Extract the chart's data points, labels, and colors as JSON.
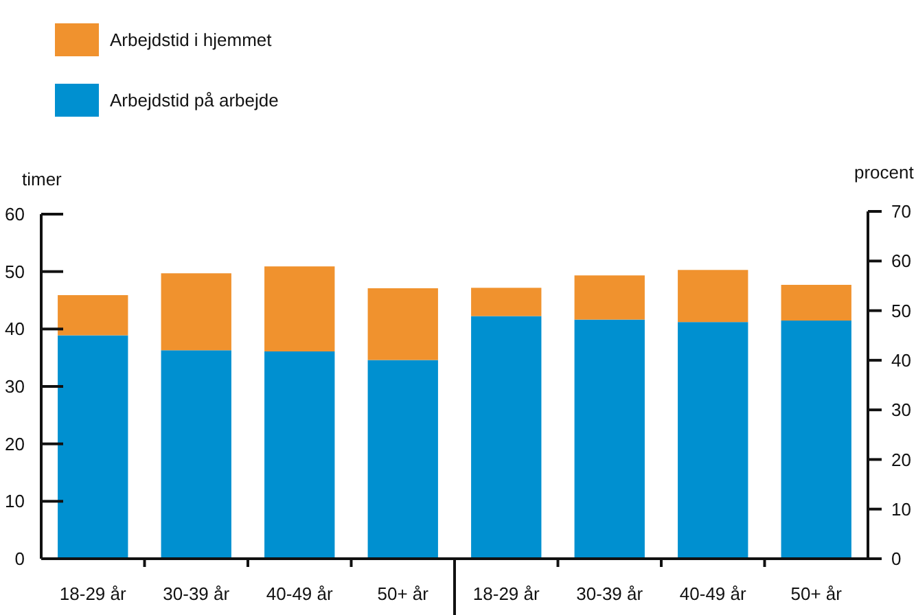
{
  "chart_data": {
    "type": "bar",
    "stacked": true,
    "ylabel": "timer",
    "y2label": "procent",
    "categories": [
      "18-29 år",
      "30-39 år",
      "40-49 år",
      "50+ år",
      "18-29 år",
      "30-39 år",
      "40-49 år",
      "50+ år"
    ],
    "series": [
      {
        "name": "Arbejdstid på arbejde",
        "color": "#0090d0",
        "values": [
          38.9,
          36.3,
          36.1,
          34.6,
          null,
          null,
          null,
          null
        ]
      },
      {
        "name": "Arbejdstid i hjemmet",
        "color": "#f0922e",
        "values": [
          7.0,
          13.4,
          14.8,
          12.5,
          null,
          null,
          null,
          null
        ]
      },
      {
        "color": "#0090d0",
        "axis": "y2",
        "values": [
          null,
          null,
          null,
          null,
          48.9,
          48.2,
          47.7,
          48.0
        ]
      },
      {
        "color": "#f0922e",
        "axis": "y2",
        "values": [
          null,
          null,
          null,
          null,
          5.7,
          8.9,
          10.5,
          7.2
        ]
      }
    ],
    "ylim": [
      0,
      60
    ],
    "yticks": [
      0,
      10,
      20,
      30,
      40,
      50,
      60
    ],
    "y2lim": [
      0,
      70
    ],
    "y2ticks": [
      0,
      10,
      20,
      30,
      40,
      50,
      60,
      70
    ],
    "legend": "top left",
    "grid": false
  }
}
